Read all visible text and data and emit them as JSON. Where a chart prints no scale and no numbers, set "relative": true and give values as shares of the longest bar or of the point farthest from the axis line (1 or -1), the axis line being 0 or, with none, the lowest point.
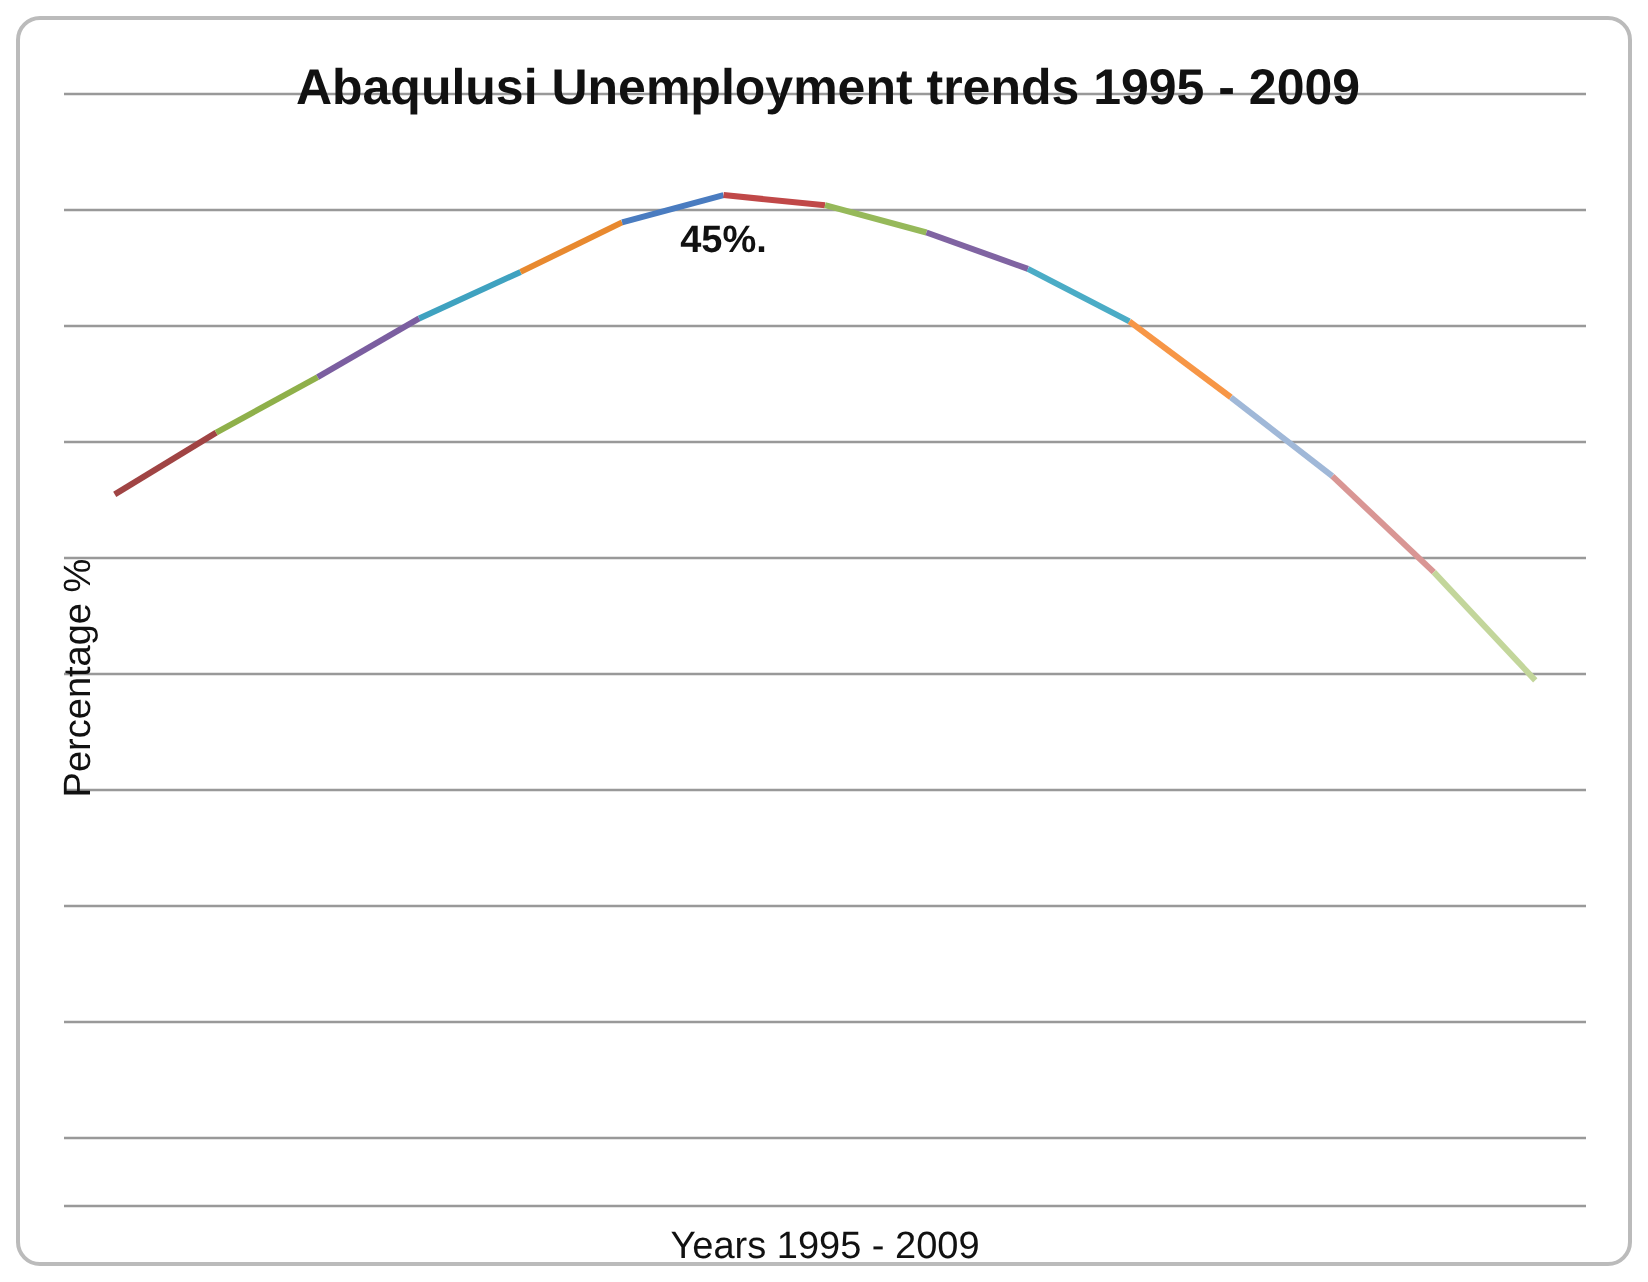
{
  "chart_data": {
    "type": "line",
    "relative": true,
    "title": "Abaqulusi Unemployment trends 1995 - 2009",
    "xlabel": "Years 1995 - 2009",
    "ylabel": "Percentage %",
    "annotations": [
      "45%."
    ],
    "grid": "y",
    "marker": "none",
    "line_style": "solid",
    "categories": [
      null,
      null,
      null,
      null,
      null,
      null,
      null,
      null,
      null,
      null,
      null,
      null,
      null,
      null,
      null
    ],
    "series": [
      {
        "color": "#a04444",
        "values": [
          0.704,
          0.765,
          null,
          null,
          null,
          null,
          null,
          null,
          null,
          null,
          null,
          null,
          null,
          null,
          null
        ]
      },
      {
        "color": "#8fb04a",
        "values": [
          null,
          0.765,
          0.82,
          null,
          null,
          null,
          null,
          null,
          null,
          null,
          null,
          null,
          null,
          null,
          null
        ]
      },
      {
        "color": "#7b5ea0",
        "values": [
          null,
          null,
          0.82,
          0.878,
          null,
          null,
          null,
          null,
          null,
          null,
          null,
          null,
          null,
          null,
          null
        ]
      },
      {
        "color": "#3fa2c0",
        "values": [
          null,
          null,
          null,
          0.878,
          0.924,
          null,
          null,
          null,
          null,
          null,
          null,
          null,
          null,
          null,
          null
        ]
      },
      {
        "color": "#e8892f",
        "values": [
          null,
          null,
          null,
          null,
          0.924,
          0.973,
          null,
          null,
          null,
          null,
          null,
          null,
          null,
          null,
          null
        ]
      },
      {
        "color": "#4a7cc0",
        "values": [
          null,
          null,
          null,
          null,
          null,
          0.973,
          1,
          null,
          null,
          null,
          null,
          null,
          null,
          null,
          null
        ]
      },
      {
        "color": "#c04848",
        "values": [
          null,
          null,
          null,
          null,
          null,
          null,
          1,
          0.99,
          null,
          null,
          null,
          null,
          null,
          null,
          null
        ]
      },
      {
        "color": "#96b95a",
        "values": [
          null,
          null,
          null,
          null,
          null,
          null,
          null,
          0.99,
          0.963,
          null,
          null,
          null,
          null,
          null,
          null
        ]
      },
      {
        "color": "#8064a2",
        "values": [
          null,
          null,
          null,
          null,
          null,
          null,
          null,
          null,
          0.963,
          0.927,
          null,
          null,
          null,
          null,
          null
        ]
      },
      {
        "color": "#4bacc6",
        "values": [
          null,
          null,
          null,
          null,
          null,
          null,
          null,
          null,
          null,
          0.927,
          0.875,
          null,
          null,
          null,
          null
        ]
      },
      {
        "color": "#f79646",
        "values": [
          null,
          null,
          null,
          null,
          null,
          null,
          null,
          null,
          null,
          null,
          0.875,
          0.8,
          null,
          null,
          null
        ]
      },
      {
        "color": "#a0b8d8",
        "values": [
          null,
          null,
          null,
          null,
          null,
          null,
          null,
          null,
          null,
          null,
          null,
          0.8,
          0.722,
          null,
          null
        ]
      },
      {
        "color": "#d99694",
        "values": [
          null,
          null,
          null,
          null,
          null,
          null,
          null,
          null,
          null,
          null,
          null,
          null,
          0.722,
          0.627,
          null
        ]
      },
      {
        "color": "#c3d69b",
        "values": [
          null,
          null,
          null,
          null,
          null,
          null,
          null,
          null,
          null,
          null,
          null,
          null,
          null,
          0.627,
          0.52
        ]
      }
    ]
  }
}
